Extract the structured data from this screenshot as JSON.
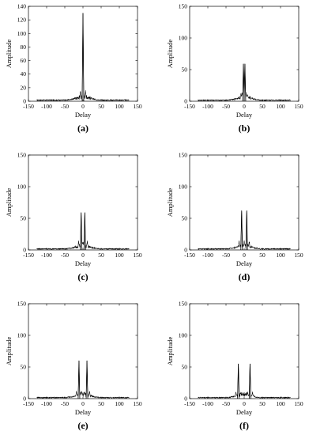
{
  "chart_data": [
    {
      "type": "line",
      "panel_label": "(a)",
      "xlabel": "Delay",
      "ylabel": "Amplitude",
      "xlim": [
        -150,
        150
      ],
      "ylim": [
        0,
        140
      ],
      "xticks": [
        -150,
        -100,
        -50,
        0,
        50,
        100,
        150
      ],
      "yticks": [
        0,
        20,
        40,
        60,
        80,
        100,
        120,
        140
      ],
      "grid": false,
      "x_range": [
        -127,
        127
      ],
      "peaks": [
        {
          "x": 0,
          "y": 130
        }
      ],
      "side_peak": {
        "offset": 7,
        "height": 16
      },
      "floor": 2
    },
    {
      "type": "line",
      "panel_label": "(b)",
      "xlabel": "Delay",
      "ylabel": "Amplitude",
      "xlim": [
        -150,
        150
      ],
      "ylim": [
        0,
        150
      ],
      "xticks": [
        -150,
        -100,
        -50,
        0,
        50,
        100,
        150
      ],
      "yticks": [
        0,
        50,
        100,
        150
      ],
      "grid": false,
      "x_range": [
        -127,
        127
      ],
      "peaks": [
        {
          "x": -2,
          "y": 59
        },
        {
          "x": 2,
          "y": 59
        }
      ],
      "side_peak": {
        "offset": 7,
        "height": 15
      },
      "floor": 2
    },
    {
      "type": "line",
      "panel_label": "(c)",
      "xlabel": "Delay",
      "ylabel": "Amplitude",
      "xlim": [
        -150,
        150
      ],
      "ylim": [
        0,
        150
      ],
      "xticks": [
        -150,
        -100,
        -50,
        0,
        50,
        100,
        150
      ],
      "yticks": [
        0,
        50,
        100,
        150
      ],
      "grid": false,
      "x_range": [
        -127,
        127
      ],
      "peaks": [
        {
          "x": -5,
          "y": 59
        },
        {
          "x": 5,
          "y": 59
        }
      ],
      "side_peak": {
        "offset": 7,
        "height": 15
      },
      "floor": 2
    },
    {
      "type": "line",
      "panel_label": "(d)",
      "xlabel": "Delay",
      "ylabel": "Amplitude",
      "xlim": [
        -150,
        150
      ],
      "ylim": [
        0,
        150
      ],
      "xticks": [
        -150,
        -100,
        -50,
        0,
        50,
        100,
        150
      ],
      "yticks": [
        0,
        50,
        100,
        150
      ],
      "grid": false,
      "x_range": [
        -127,
        127
      ],
      "peaks": [
        {
          "x": -7,
          "y": 62
        },
        {
          "x": 7,
          "y": 62
        }
      ],
      "side_peak": {
        "offset": 7,
        "height": 15
      },
      "floor": 2
    },
    {
      "type": "line",
      "panel_label": "(e)",
      "xlabel": "Delay",
      "ylabel": "Amplitude",
      "xlim": [
        -150,
        150
      ],
      "ylim": [
        0,
        150
      ],
      "xticks": [
        -150,
        -100,
        -50,
        0,
        50,
        100,
        150
      ],
      "yticks": [
        0,
        50,
        100,
        150
      ],
      "grid": false,
      "x_range": [
        -127,
        127
      ],
      "peaks": [
        {
          "x": -11,
          "y": 60
        },
        {
          "x": 11,
          "y": 60
        }
      ],
      "side_peak": {
        "offset": 7,
        "height": 13
      },
      "floor": 2
    },
    {
      "type": "line",
      "panel_label": "(f)",
      "xlabel": "Delay",
      "ylabel": "Amplitude",
      "xlim": [
        -150,
        150
      ],
      "ylim": [
        0,
        150
      ],
      "xticks": [
        -150,
        -100,
        -50,
        0,
        50,
        100,
        150
      ],
      "yticks": [
        0,
        50,
        100,
        150
      ],
      "grid": false,
      "x_range": [
        -127,
        127
      ],
      "peaks": [
        {
          "x": -16,
          "y": 55
        },
        {
          "x": 16,
          "y": 55
        }
      ],
      "side_peak": {
        "offset": 7,
        "height": 12
      },
      "floor": 2
    }
  ]
}
